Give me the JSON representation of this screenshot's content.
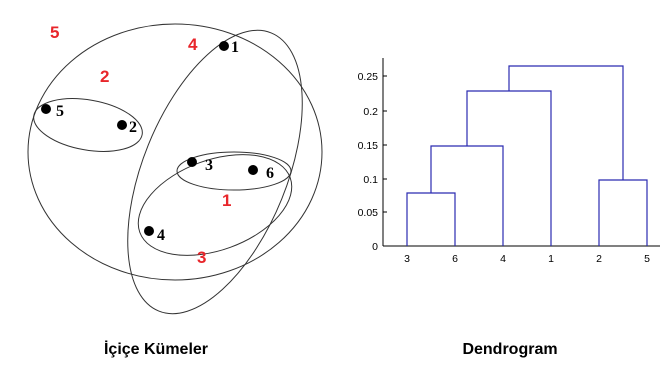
{
  "colors": {
    "cluster_label": "#e8262b",
    "dendrogram": "#2b2bb0",
    "ink": "#000000"
  },
  "nested": {
    "caption": "İçiçe Kümeler",
    "points": [
      "1",
      "2",
      "3",
      "4",
      "5",
      "6"
    ],
    "cluster_labels": [
      "1",
      "2",
      "3",
      "4",
      "5"
    ]
  },
  "dendrogram": {
    "caption": "Dendrogram",
    "y_ticks": [
      "0",
      "0.05",
      "0.1",
      "0.15",
      "0.2",
      "0.25"
    ],
    "x_ticks": [
      "3",
      "6",
      "4",
      "1",
      "2",
      "5"
    ]
  }
}
